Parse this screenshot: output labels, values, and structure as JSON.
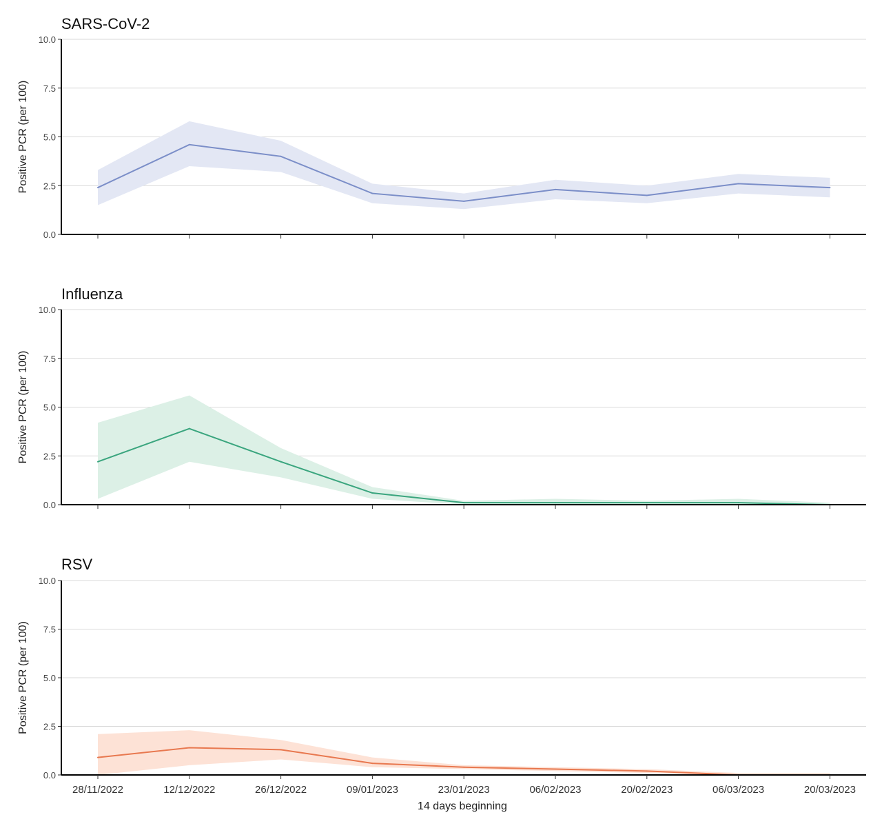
{
  "chart_data": {
    "type": "line",
    "layout": "faceted-vertical",
    "x_axis": {
      "title": "14 days beginning",
      "categories": [
        "28/11/2022",
        "12/12/2022",
        "26/12/2022",
        "09/01/2023",
        "23/01/2023",
        "06/02/2023",
        "20/02/2023",
        "06/03/2023",
        "20/03/2023"
      ]
    },
    "y_axis": {
      "title": "Positive PCR (per 100)",
      "ylim": [
        0,
        10
      ],
      "ticks": [
        "0.0",
        "2.5",
        "5.0",
        "7.5",
        "10.0"
      ]
    },
    "grid": "horizontal",
    "legend": "none",
    "panels": [
      {
        "title": "SARS-CoV-2",
        "line_color": "#7b8ec8",
        "band_color": "#e3e7f4",
        "values": [
          2.4,
          4.6,
          4.0,
          2.1,
          1.7,
          2.3,
          2.0,
          2.6,
          2.4
        ],
        "lower": [
          1.5,
          3.5,
          3.2,
          1.6,
          1.3,
          1.8,
          1.6,
          2.1,
          1.9
        ],
        "upper": [
          3.3,
          5.8,
          4.8,
          2.6,
          2.1,
          2.8,
          2.5,
          3.1,
          2.9
        ]
      },
      {
        "title": "Influenza",
        "line_color": "#3aa57e",
        "band_color": "#dcf0e6",
        "values": [
          2.2,
          3.9,
          2.2,
          0.6,
          0.1,
          0.1,
          0.1,
          0.1,
          0.0
        ],
        "lower": [
          0.3,
          2.2,
          1.4,
          0.3,
          0.0,
          0.0,
          0.0,
          0.0,
          0.0
        ],
        "upper": [
          4.2,
          5.6,
          2.9,
          0.9,
          0.2,
          0.3,
          0.2,
          0.3,
          0.1
        ]
      },
      {
        "title": "RSV",
        "line_color": "#e8784f",
        "band_color": "#fde2d6",
        "values": [
          0.9,
          1.4,
          1.3,
          0.6,
          0.4,
          0.3,
          0.2,
          0.0,
          0.0
        ],
        "lower": [
          0.0,
          0.5,
          0.8,
          0.4,
          0.3,
          0.2,
          0.1,
          0.0,
          0.0
        ],
        "upper": [
          2.1,
          2.3,
          1.8,
          0.9,
          0.5,
          0.4,
          0.3,
          0.1,
          0.1
        ]
      }
    ]
  }
}
